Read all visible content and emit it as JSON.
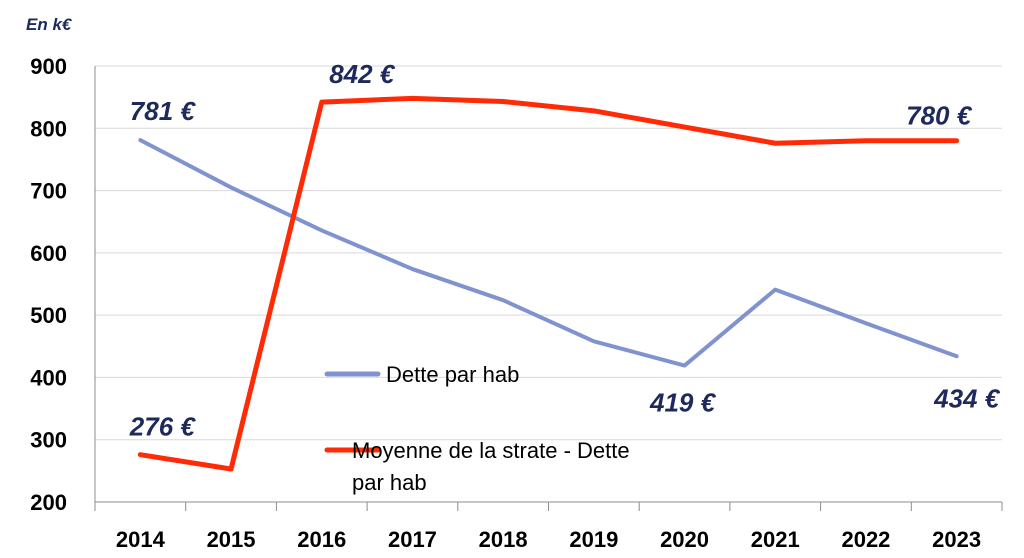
{
  "chart_data": {
    "type": "line",
    "unit_label": "En k€",
    "categories": [
      "2014",
      "2015",
      "2016",
      "2017",
      "2018",
      "2019",
      "2020",
      "2021",
      "2022",
      "2023"
    ],
    "ylim": [
      200,
      900
    ],
    "yticks": [
      200,
      300,
      400,
      500,
      600,
      700,
      800,
      900
    ],
    "grid": true,
    "legend_position": "center",
    "series": [
      {
        "name": "Dette par hab",
        "color": "#8193cf",
        "values": [
          781,
          705,
          636,
          574,
          524,
          458,
          419,
          541,
          487,
          434
        ]
      },
      {
        "name": "Moyenne de la strate - Dette par hab",
        "name_lines": [
          "Moyenne de la strate - Dette",
          "par hab"
        ],
        "color": "#ff2a06",
        "values": [
          276,
          253,
          842,
          848,
          843,
          828,
          802,
          776,
          780,
          780
        ]
      }
    ],
    "annotations": [
      {
        "series": 0,
        "index": 0,
        "text": "781 €"
      },
      {
        "series": 0,
        "index": 6,
        "text": "419 €"
      },
      {
        "series": 0,
        "index": 9,
        "text": "434 €"
      },
      {
        "series": 1,
        "index": 0,
        "text": "276 €"
      },
      {
        "series": 1,
        "index": 2,
        "text": "842 €"
      },
      {
        "series": 1,
        "index": 9,
        "text": "780 €"
      }
    ]
  }
}
